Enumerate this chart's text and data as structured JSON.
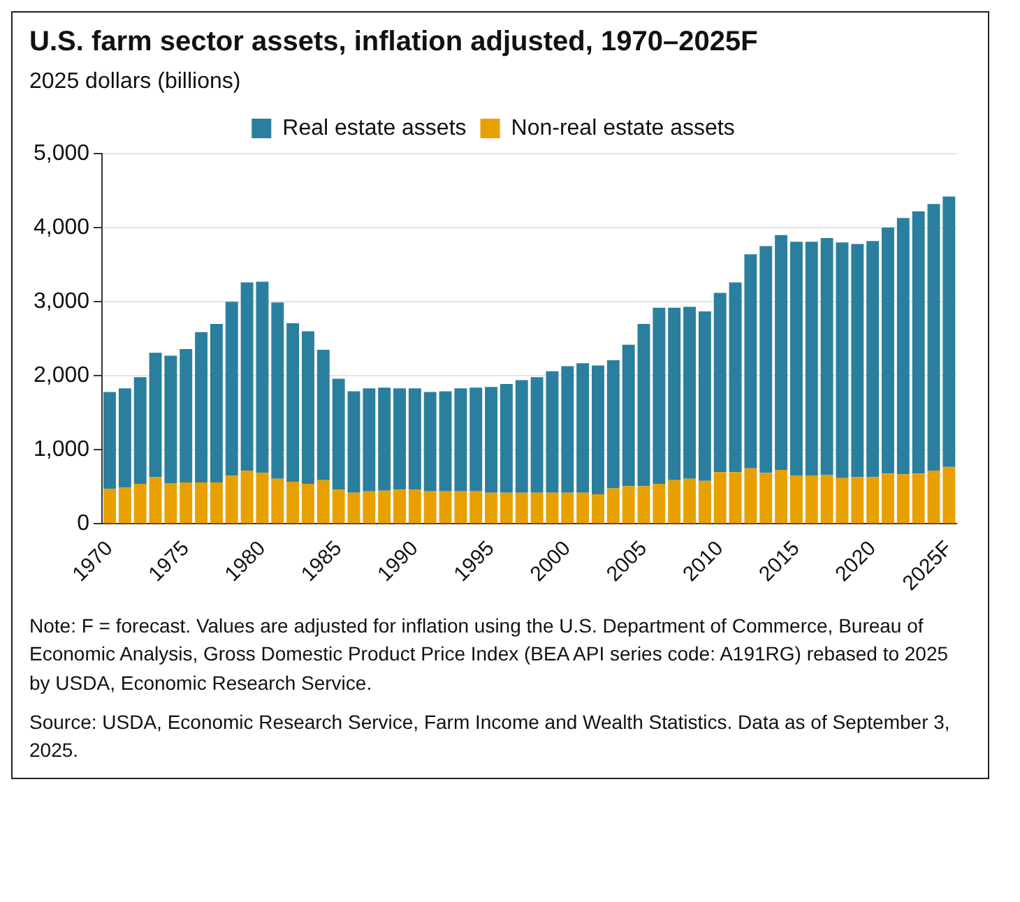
{
  "chart_data": {
    "type": "bar",
    "title": "U.S. farm sector assets, inflation adjusted, 1970–2025F",
    "ylabel": "2025 dollars (billions)",
    "categories": [
      "1970",
      null,
      null,
      null,
      null,
      "1975",
      null,
      null,
      null,
      null,
      "1980",
      null,
      null,
      null,
      null,
      "1985",
      null,
      null,
      null,
      null,
      "1990",
      null,
      null,
      null,
      null,
      "1995",
      null,
      null,
      null,
      null,
      "2000",
      null,
      null,
      null,
      null,
      "2005",
      null,
      null,
      null,
      null,
      "2010",
      null,
      null,
      null,
      null,
      "2015",
      null,
      null,
      null,
      null,
      "2020",
      null,
      null,
      null,
      null,
      "2025F"
    ],
    "stacked": true,
    "series": [
      {
        "name": "Non-real estate assets",
        "color": "#e8a000",
        "values": [
          470,
          490,
          540,
          630,
          550,
          560,
          560,
          560,
          650,
          720,
          690,
          610,
          570,
          540,
          590,
          460,
          420,
          440,
          450,
          460,
          460,
          440,
          440,
          440,
          440,
          420,
          420,
          420,
          420,
          420,
          420,
          420,
          400,
          480,
          510,
          510,
          540,
          590,
          610,
          580,
          700,
          700,
          750,
          690,
          730,
          650,
          650,
          660,
          620,
          630,
          630,
          680,
          670,
          680,
          720,
          770
        ]
      },
      {
        "name": "Real estate assets",
        "color": "#2a7f9e",
        "values": [
          1310,
          1340,
          1440,
          1680,
          1720,
          1800,
          2030,
          2140,
          2350,
          2540,
          2580,
          2380,
          2140,
          2060,
          1760,
          1500,
          1370,
          1390,
          1390,
          1370,
          1370,
          1340,
          1350,
          1390,
          1400,
          1430,
          1470,
          1520,
          1560,
          1640,
          1710,
          1750,
          1740,
          1730,
          1910,
          2190,
          2380,
          2330,
          2320,
          2290,
          2420,
          2560,
          2890,
          3060,
          3170,
          3160,
          3160,
          3200,
          3180,
          3150,
          3190,
          3320,
          3460,
          3540,
          3600,
          3650
        ]
      }
    ],
    "ylim": [
      0,
      5000
    ],
    "yticks": [
      0,
      {
        "value": 1000,
        "label": "1,000"
      },
      {
        "value": 2000,
        "label": "2,000"
      },
      {
        "value": 3000,
        "label": "3,000"
      },
      {
        "value": 4000,
        "label": "4,000"
      },
      {
        "value": 5000,
        "label": "5,000"
      }
    ],
    "grid": "y",
    "legend": "top",
    "annotations": [
      "Note: F = forecast. Values are adjusted for inflation using the U.S. Department of Commerce, Bureau of Economic Analysis, Gross Domestic Product Price Index (BEA API series code: A191RG) rebased to 2025 by USDA, Economic Research Service.",
      "Source: USDA, Economic Research Service, Farm Income and Wealth Statistics. Data as of September 3, 2025."
    ]
  }
}
